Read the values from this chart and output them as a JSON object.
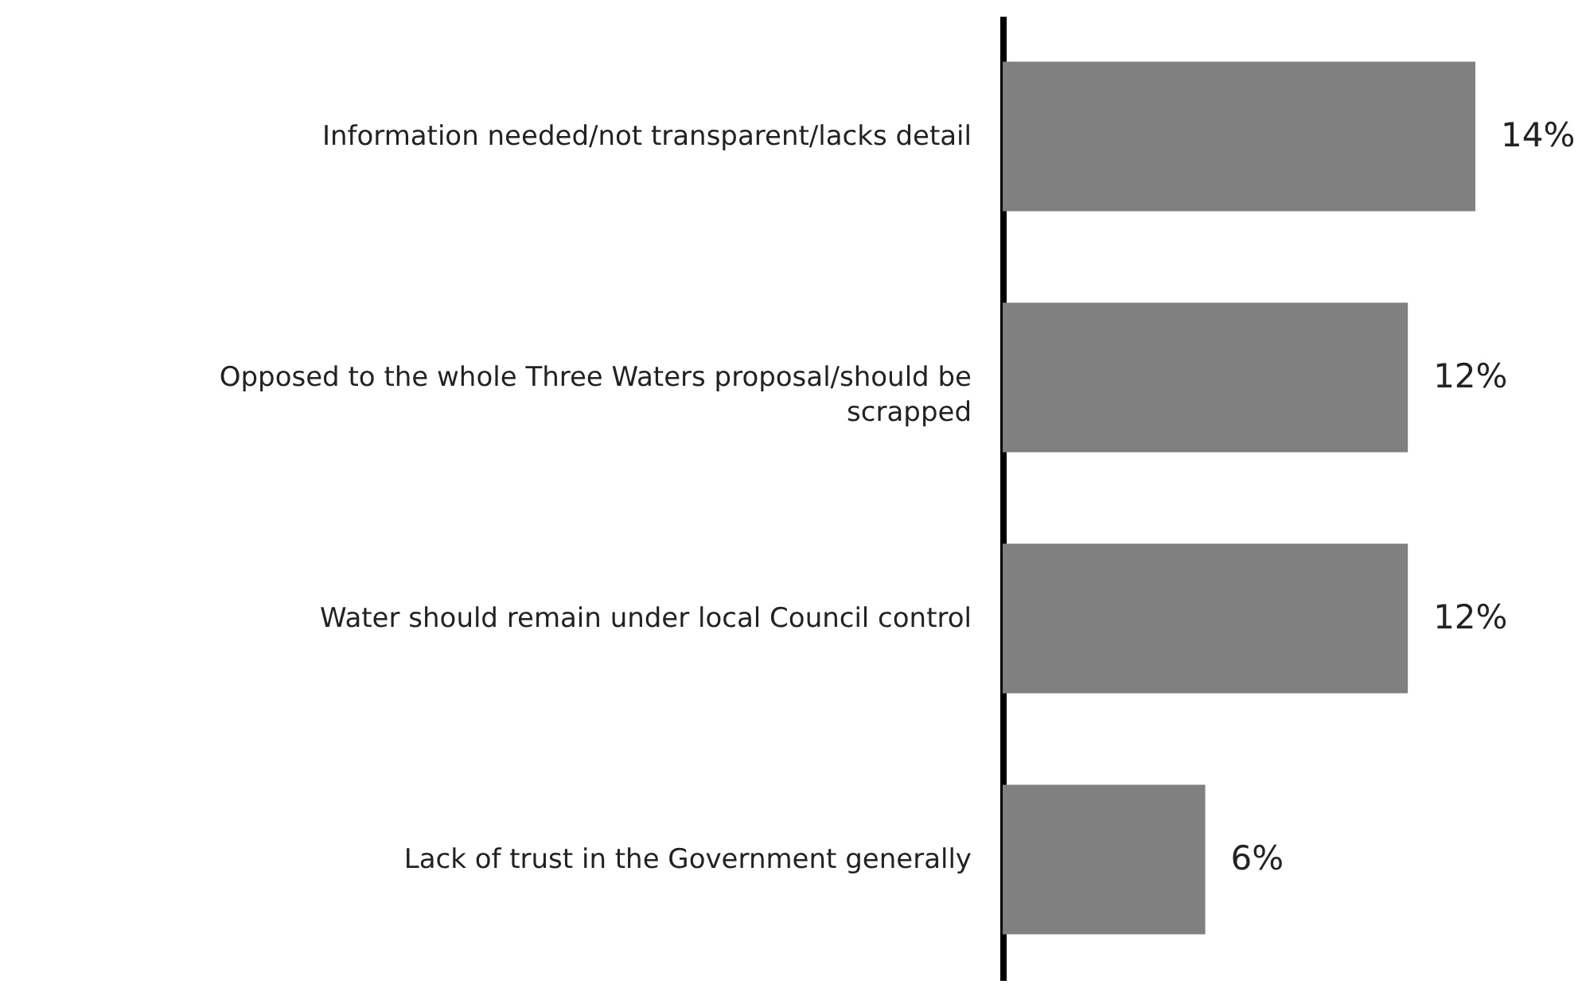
{
  "chart_data": {
    "type": "bar",
    "orientation": "horizontal",
    "categories": [
      "Information needed/not transparent/lacks detail",
      "Opposed to the whole Three Waters proposal/should be scrapped",
      "Water should remain under local Council control",
      "Lack of trust in the Government generally"
    ],
    "values": [
      14,
      12,
      12,
      6
    ],
    "value_labels": [
      "14%",
      "12%",
      "12%",
      "6%"
    ],
    "color": "#808080"
  }
}
